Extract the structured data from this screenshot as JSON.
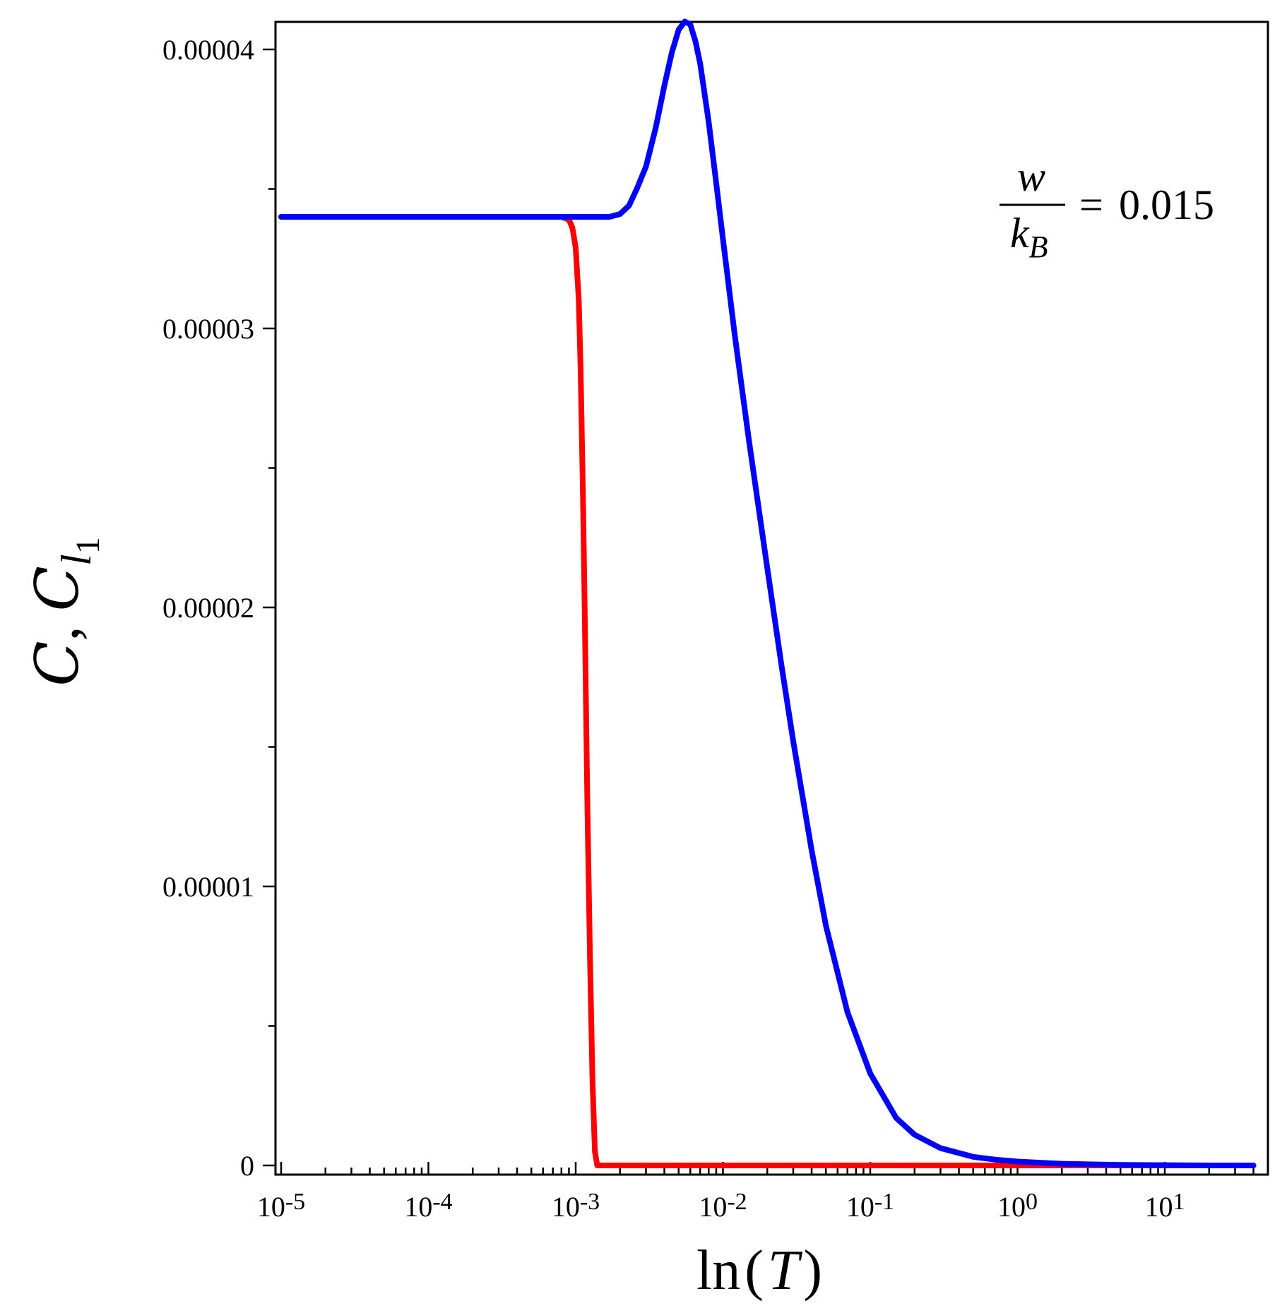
{
  "chart_data": {
    "type": "line",
    "x_scale": "log",
    "xlabel": {
      "prefix": "ln",
      "open": "(",
      "var": "T",
      "close": ")"
    },
    "ylabel": {
      "symbol1": "C",
      "sep": ", ",
      "symbol2": "C",
      "sub": "l",
      "subsub": "1"
    },
    "xlim": [
      1e-05,
      45
    ],
    "ylim": [
      0,
      4.11e-05
    ],
    "x_ticks": [
      {
        "base": "10",
        "exp": "-5",
        "value": 1e-05
      },
      {
        "base": "10",
        "exp": "-4",
        "value": 0.0001
      },
      {
        "base": "10",
        "exp": "-3",
        "value": 0.001
      },
      {
        "base": "10",
        "exp": "-2",
        "value": 0.01
      },
      {
        "base": "10",
        "exp": "-1",
        "value": 0.1
      },
      {
        "base": "10",
        "exp": "0",
        "value": 1
      },
      {
        "base": "10",
        "exp": "1",
        "value": 10
      }
    ],
    "y_ticks": [
      {
        "label": "0",
        "value": 0
      },
      {
        "label": "0.00001",
        "value": 1e-05
      },
      {
        "label": "0.00002",
        "value": 2e-05
      },
      {
        "label": "0.00003",
        "value": 3e-05
      },
      {
        "label": "0.00004",
        "value": 4e-05
      }
    ],
    "y_minor_ticks": [
      5e-06,
      1.5e-05,
      2.5e-05,
      3.5e-05
    ],
    "grid": false,
    "annotation": {
      "numerator": "w",
      "denominator": "k",
      "denominator_sub": "B",
      "equals": "=",
      "value": "0.015"
    },
    "series": [
      {
        "color": "#ff0000",
        "x": [
          1e-05,
          0.0001,
          0.0005,
          0.0008,
          0.0009,
          0.00095,
          0.001,
          0.00105,
          0.00108,
          0.00112,
          0.00115,
          0.0012,
          0.00125,
          0.0013,
          0.00135,
          0.0014,
          0.01,
          0.1,
          1,
          10,
          40
        ],
        "y": [
          3.4e-05,
          3.4e-05,
          3.4e-05,
          3.4e-05,
          3.39e-05,
          3.36e-05,
          3.29e-05,
          3.1e-05,
          2.85e-05,
          2.4e-05,
          2e-05,
          1.3e-05,
          7.5e-06,
          3e-06,
          5e-07,
          0,
          0,
          0,
          0,
          0,
          0
        ]
      },
      {
        "color": "#0000ff",
        "x": [
          1e-05,
          0.0001,
          0.001,
          0.0017,
          0.002,
          0.0023,
          0.0026,
          0.003,
          0.0035,
          0.004,
          0.0045,
          0.005,
          0.0055,
          0.006,
          0.0065,
          0.007,
          0.008,
          0.009,
          0.01,
          0.012,
          0.015,
          0.02,
          0.025,
          0.03,
          0.04,
          0.05,
          0.07,
          0.1,
          0.15,
          0.2,
          0.3,
          0.5,
          0.7,
          1,
          1.5,
          2,
          3,
          5,
          10,
          20,
          40
        ],
        "y": [
          3.4e-05,
          3.4e-05,
          3.4e-05,
          3.4e-05,
          3.41e-05,
          3.44e-05,
          3.5e-05,
          3.58e-05,
          3.72e-05,
          3.87e-05,
          3.99e-05,
          4.07e-05,
          4.1e-05,
          4.09e-05,
          4.03e-05,
          3.95e-05,
          3.74e-05,
          3.52e-05,
          3.32e-05,
          2.98e-05,
          2.6e-05,
          2.14e-05,
          1.79e-05,
          1.52e-05,
          1.13e-05,
          8.6e-06,
          5.5e-06,
          3.3e-06,
          1.7e-06,
          1.1e-06,
          6.2e-07,
          3.1e-07,
          2.1e-07,
          1.4e-07,
          9e-08,
          6e-08,
          4e-08,
          2e-08,
          1e-08,
          0,
          0
        ]
      }
    ]
  }
}
